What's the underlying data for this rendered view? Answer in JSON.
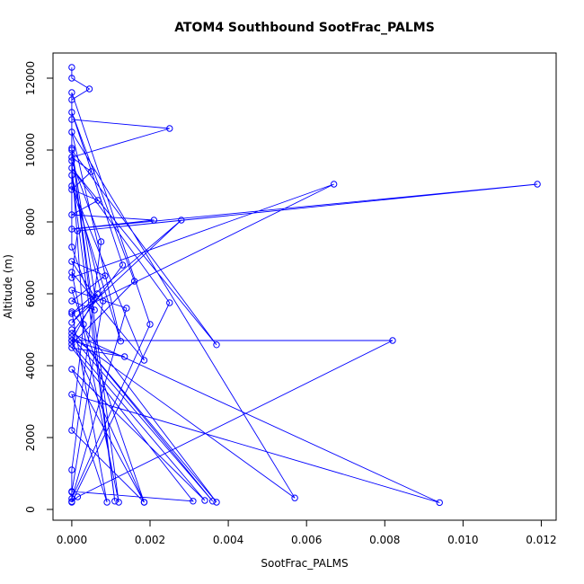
{
  "chart_data": {
    "type": "line",
    "title": "ATOM4 Southbound SootFrac_PALMS",
    "xlabel": "SootFrac_PALMS",
    "ylabel": "Altitude (m)",
    "xlim": [
      -0.00048,
      0.01238
    ],
    "ylim": [
      -300,
      12700
    ],
    "x_ticks": [
      0.0,
      0.002,
      0.004,
      0.006,
      0.008,
      0.01,
      0.012
    ],
    "x_tick_labels": [
      "0.000",
      "0.002",
      "0.004",
      "0.006",
      "0.008",
      "0.010",
      "0.012"
    ],
    "y_ticks": [
      0,
      2000,
      4000,
      6000,
      8000,
      10000,
      12000
    ],
    "y_tick_labels": [
      "0",
      "2000",
      "4000",
      "6000",
      "8000",
      "10000",
      "12000"
    ],
    "grid": false,
    "line_color": "#0000ff",
    "marker": "open-circle",
    "series": [
      {
        "points": [
          [
            0.0,
            12300
          ],
          [
            0.0,
            12000
          ],
          [
            0.00045,
            11700
          ],
          [
            0.0,
            11400
          ],
          [
            0.0,
            10850
          ],
          [
            0.0025,
            10600
          ],
          [
            0.0,
            9800
          ],
          [
            0.0005,
            9400
          ],
          [
            0.0,
            8900
          ],
          [
            0.00067,
            8600
          ],
          [
            0.0,
            8200
          ],
          [
            0.0021,
            8050
          ],
          [
            0.0,
            7800
          ],
          [
            0.0119,
            9050
          ],
          [
            0.00015,
            7750
          ],
          [
            0.0,
            6450
          ],
          [
            0.0067,
            9050
          ],
          [
            0.0,
            5450
          ],
          [
            0.0028,
            8050
          ],
          [
            0.0,
            5200
          ],
          [
            0.00065,
            6000
          ],
          [
            0.0,
            4700
          ],
          [
            0.0082,
            4700
          ],
          [
            0.00015,
            350
          ],
          [
            0.0,
            200
          ],
          [
            0.0025,
            5750
          ],
          [
            0.0,
            9500
          ],
          [
            0.0037,
            4580
          ],
          [
            0.0,
            10000
          ],
          [
            0.0012,
            200
          ],
          [
            0.0,
            6600
          ],
          [
            0.00185,
            4150
          ],
          [
            0.0,
            9000
          ],
          [
            0.00125,
            4680
          ],
          [
            0.0,
            10500
          ],
          [
            0.0057,
            320
          ],
          [
            0.0,
            4800
          ],
          [
            0.0036,
            230
          ],
          [
            0.0,
            5000
          ],
          [
            0.0037,
            200
          ],
          [
            0.0,
            5500
          ],
          [
            0.0009,
            200
          ],
          [
            0.0,
            3200
          ],
          [
            0.0094,
            190
          ],
          [
            0.0,
            4900
          ],
          [
            0.0013,
            6800
          ],
          [
            0.0,
            11050
          ],
          [
            0.0016,
            6350
          ],
          [
            0.0,
            4600
          ],
          [
            0.0034,
            250
          ],
          [
            0.0,
            3900
          ],
          [
            0.00185,
            200
          ],
          [
            0.0,
            4700
          ],
          [
            0.00135,
            4250
          ],
          [
            0.0,
            4500
          ],
          [
            0.0031,
            230
          ],
          [
            0.0,
            500
          ],
          [
            0.0,
            220
          ],
          [
            0.0,
            1100
          ],
          [
            0.00075,
            7450
          ],
          [
            0.0,
            9700
          ],
          [
            0.0003,
            5150
          ],
          [
            0.0,
            2200
          ],
          [
            0.00185,
            200
          ],
          [
            0.0,
            6100
          ],
          [
            0.0014,
            5600
          ],
          [
            0.0,
            300
          ],
          [
            0.002,
            5150
          ],
          [
            0.0,
            11600
          ],
          [
            0.0,
            7300
          ],
          [
            0.00058,
            5550
          ],
          [
            0.0,
            5800
          ],
          [
            0.00085,
            6500
          ],
          [
            0.0,
            6900
          ],
          [
            0.0006,
            5900
          ],
          [
            0.0,
            10050
          ],
          [
            0.0011,
            230
          ],
          [
            0.0,
            9300
          ],
          [
            0.0008,
            5800
          ],
          [
            0.0,
            480
          ]
        ]
      }
    ]
  }
}
